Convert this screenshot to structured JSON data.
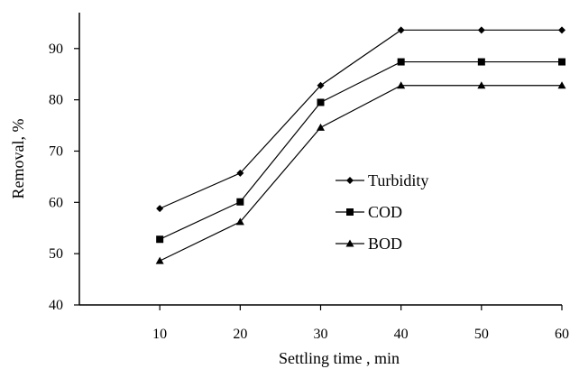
{
  "chart_data": {
    "type": "line",
    "xlabel": "Settling time , min",
    "ylabel": "Removal, %",
    "x": [
      10,
      20,
      30,
      40,
      50,
      60
    ],
    "xticks": [
      "10",
      "20",
      "30",
      "40",
      "50",
      "60"
    ],
    "yticks": [
      "40",
      "50",
      "60",
      "70",
      "80",
      "90"
    ],
    "xlim": [
      0,
      60
    ],
    "ylim": [
      40,
      97
    ],
    "grid": false,
    "legend_position": "center-right",
    "series": [
      {
        "name": "Turbidity",
        "marker": "diamond",
        "color": "#000000",
        "values": [
          58.8,
          65.7,
          82.8,
          93.6,
          93.6,
          93.6
        ]
      },
      {
        "name": "COD",
        "marker": "square",
        "color": "#000000",
        "values": [
          52.8,
          60.1,
          79.5,
          87.4,
          87.4,
          87.4
        ]
      },
      {
        "name": "BOD",
        "marker": "triangle",
        "color": "#000000",
        "values": [
          48.6,
          56.2,
          74.6,
          82.8,
          82.8,
          82.8
        ]
      }
    ]
  }
}
